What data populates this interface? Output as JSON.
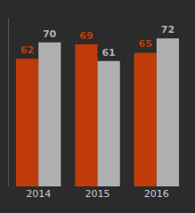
{
  "chart_data": {
    "type": "bar",
    "categories": [
      "2014",
      "2015",
      "2016"
    ],
    "series": [
      {
        "color": "#bf3b0a",
        "values": [
          62,
          69,
          65
        ]
      },
      {
        "color": "#b0afaf",
        "values": [
          70,
          61,
          72
        ]
      }
    ],
    "ylim": [
      0,
      82
    ],
    "data_labels": true,
    "tick_labels": "x",
    "grid": false
  }
}
